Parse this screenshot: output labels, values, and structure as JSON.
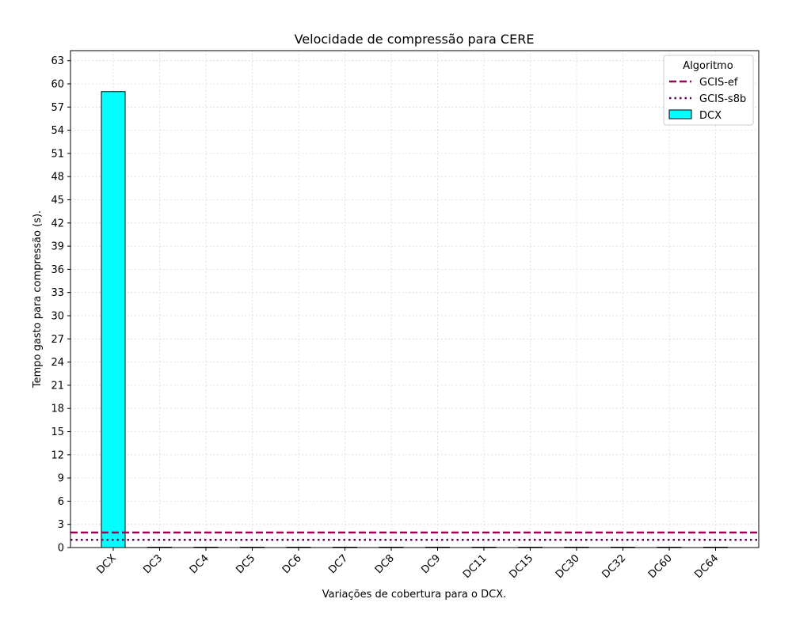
{
  "chart_data": {
    "type": "bar",
    "title": "Velocidade de compressão para  CERE",
    "xlabel": "Variações de cobertura para o DCX.",
    "ylabel": "Tempo gasto para compressão (s).",
    "categories": [
      "DCX",
      "DC3",
      "DC4",
      "DC5",
      "DC6",
      "DC7",
      "DC8",
      "DC9",
      "DC11",
      "DC15",
      "DC30",
      "DC32",
      "DC60",
      "DC64"
    ],
    "ylim": [
      0,
      64.3
    ],
    "yticks": [
      0,
      3,
      6,
      9,
      12,
      15,
      18,
      21,
      24,
      27,
      30,
      33,
      36,
      39,
      42,
      45,
      48,
      51,
      54,
      57,
      60,
      63
    ],
    "grid": true,
    "legend": {
      "title": "Algoritmo",
      "placement": "top-right",
      "entries": [
        "GCIS-ef",
        "GCIS-s8b",
        "DCX"
      ]
    },
    "series": [
      {
        "name": "DCX",
        "kind": "bar",
        "color": "#00ffff",
        "edge": "#000000",
        "values": [
          59.0,
          0.05,
          0.05,
          0.05,
          0.05,
          0.05,
          0.05,
          0.05,
          0.05,
          0.05,
          0.05,
          0.05,
          0.05,
          0.05
        ]
      },
      {
        "name": "GCIS-ef",
        "kind": "hline",
        "style": "dashed",
        "color": "#990055",
        "value": 1.95
      },
      {
        "name": "GCIS-s8b",
        "kind": "hline",
        "style": "dotted",
        "color": "#660055",
        "value": 1.0
      }
    ]
  }
}
